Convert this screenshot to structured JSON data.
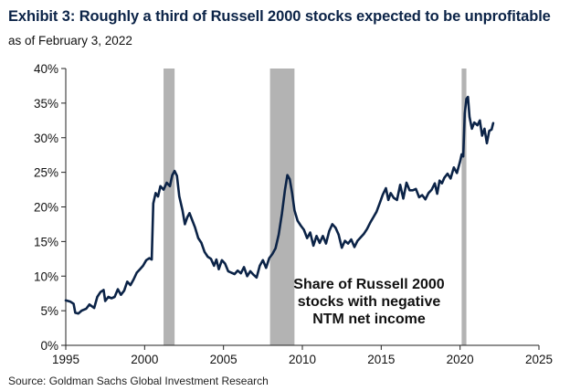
{
  "header": {
    "title": "Exhibit 3: Roughly a third of Russell 2000 stocks expected to be unprofitable",
    "subtitle": "as of February 3, 2022"
  },
  "footer": {
    "source": "Source: Goldman Sachs Global Investment Research"
  },
  "chart_data": {
    "type": "line",
    "xlim": [
      1995,
      2025
    ],
    "ylim": [
      0,
      40
    ],
    "x_ticks": [
      {
        "value": 1995,
        "label": "1995"
      },
      {
        "value": 2000,
        "label": "2000"
      },
      {
        "value": 2005,
        "label": "2005"
      },
      {
        "value": 2010,
        "label": "2010"
      },
      {
        "value": 2015,
        "label": "2015"
      },
      {
        "value": 2020,
        "label": "2020"
      },
      {
        "value": 2025,
        "label": "2025"
      }
    ],
    "y_ticks": [
      {
        "value": 0,
        "label": "0%"
      },
      {
        "value": 5,
        "label": "5%"
      },
      {
        "value": 10,
        "label": "10%"
      },
      {
        "value": 15,
        "label": "15%"
      },
      {
        "value": 20,
        "label": "20%"
      },
      {
        "value": 25,
        "label": "25%"
      },
      {
        "value": 30,
        "label": "30%"
      },
      {
        "value": 35,
        "label": "35%"
      },
      {
        "value": 40,
        "label": "40%"
      }
    ],
    "grid": false,
    "line_color": "#0b2347",
    "shade_color": "#b3b3b3",
    "recessions": [
      {
        "start": 2001.2,
        "end": 2001.9
      },
      {
        "start": 2007.95,
        "end": 2009.5
      },
      {
        "start": 2020.1,
        "end": 2020.4
      }
    ],
    "annotation": [
      "Share of Russell 2000",
      "stocks with negative",
      "NTM net income"
    ],
    "series": [
      {
        "points": [
          [
            1995.0,
            6.5
          ],
          [
            1995.3,
            6.3
          ],
          [
            1995.5,
            6.0
          ],
          [
            1995.6,
            4.7
          ],
          [
            1995.8,
            4.6
          ],
          [
            1996.0,
            5.0
          ],
          [
            1996.3,
            5.3
          ],
          [
            1996.5,
            5.9
          ],
          [
            1996.8,
            5.4
          ],
          [
            1997.0,
            7.0
          ],
          [
            1997.2,
            7.7
          ],
          [
            1997.4,
            8.0
          ],
          [
            1997.5,
            6.4
          ],
          [
            1997.7,
            7.0
          ],
          [
            1997.9,
            6.8
          ],
          [
            1998.1,
            7.0
          ],
          [
            1998.3,
            8.1
          ],
          [
            1998.5,
            7.3
          ],
          [
            1998.7,
            7.9
          ],
          [
            1998.9,
            9.2
          ],
          [
            1999.1,
            8.7
          ],
          [
            1999.3,
            9.5
          ],
          [
            1999.5,
            10.5
          ],
          [
            1999.7,
            11.0
          ],
          [
            1999.9,
            11.5
          ],
          [
            2000.1,
            12.3
          ],
          [
            2000.3,
            12.6
          ],
          [
            2000.45,
            12.4
          ],
          [
            2000.55,
            20.5
          ],
          [
            2000.7,
            22.0
          ],
          [
            2000.85,
            21.5
          ],
          [
            2001.0,
            23.0
          ],
          [
            2001.2,
            22.5
          ],
          [
            2001.4,
            23.5
          ],
          [
            2001.6,
            23.0
          ],
          [
            2001.75,
            24.6
          ],
          [
            2001.9,
            25.2
          ],
          [
            2002.05,
            24.5
          ],
          [
            2002.2,
            21.5
          ],
          [
            2002.4,
            19.5
          ],
          [
            2002.55,
            17.5
          ],
          [
            2002.7,
            18.5
          ],
          [
            2002.85,
            19.1
          ],
          [
            2003.0,
            18.2
          ],
          [
            2003.2,
            17.0
          ],
          [
            2003.4,
            15.5
          ],
          [
            2003.6,
            14.8
          ],
          [
            2003.8,
            13.5
          ],
          [
            2004.0,
            12.8
          ],
          [
            2004.2,
            12.5
          ],
          [
            2004.4,
            11.5
          ],
          [
            2004.55,
            12.4
          ],
          [
            2004.7,
            11.0
          ],
          [
            2004.9,
            12.3
          ],
          [
            2005.1,
            11.8
          ],
          [
            2005.3,
            10.7
          ],
          [
            2005.5,
            10.5
          ],
          [
            2005.7,
            10.3
          ],
          [
            2005.9,
            10.8
          ],
          [
            2006.1,
            10.4
          ],
          [
            2006.3,
            11.3
          ],
          [
            2006.5,
            10.0
          ],
          [
            2006.7,
            10.7
          ],
          [
            2006.9,
            10.2
          ],
          [
            2007.1,
            9.8
          ],
          [
            2007.3,
            11.5
          ],
          [
            2007.5,
            12.3
          ],
          [
            2007.7,
            11.2
          ],
          [
            2007.9,
            12.6
          ],
          [
            2008.1,
            13.2
          ],
          [
            2008.3,
            14.0
          ],
          [
            2008.5,
            16.0
          ],
          [
            2008.7,
            19.0
          ],
          [
            2008.9,
            22.5
          ],
          [
            2009.05,
            24.6
          ],
          [
            2009.2,
            24.0
          ],
          [
            2009.35,
            22.0
          ],
          [
            2009.5,
            19.5
          ],
          [
            2009.7,
            18.0
          ],
          [
            2009.9,
            17.3
          ],
          [
            2010.1,
            16.7
          ],
          [
            2010.3,
            15.5
          ],
          [
            2010.5,
            16.3
          ],
          [
            2010.7,
            14.4
          ],
          [
            2010.9,
            15.8
          ],
          [
            2011.1,
            14.8
          ],
          [
            2011.3,
            15.8
          ],
          [
            2011.5,
            14.7
          ],
          [
            2011.7,
            16.5
          ],
          [
            2011.9,
            17.5
          ],
          [
            2012.1,
            17.0
          ],
          [
            2012.3,
            16.0
          ],
          [
            2012.5,
            14.1
          ],
          [
            2012.7,
            15.1
          ],
          [
            2012.9,
            14.7
          ],
          [
            2013.1,
            15.3
          ],
          [
            2013.3,
            14.2
          ],
          [
            2013.5,
            15.1
          ],
          [
            2013.7,
            15.6
          ],
          [
            2013.9,
            16.1
          ],
          [
            2014.1,
            16.8
          ],
          [
            2014.3,
            17.7
          ],
          [
            2014.5,
            18.5
          ],
          [
            2014.7,
            19.3
          ],
          [
            2014.9,
            20.5
          ],
          [
            2015.1,
            21.8
          ],
          [
            2015.3,
            22.7
          ],
          [
            2015.45,
            21.0
          ],
          [
            2015.6,
            22.0
          ],
          [
            2015.8,
            21.3
          ],
          [
            2016.0,
            21.0
          ],
          [
            2016.2,
            23.2
          ],
          [
            2016.4,
            21.2
          ],
          [
            2016.6,
            23.5
          ],
          [
            2016.8,
            22.4
          ],
          [
            2017.0,
            22.4
          ],
          [
            2017.2,
            22.6
          ],
          [
            2017.4,
            21.4
          ],
          [
            2017.6,
            21.7
          ],
          [
            2017.8,
            21.1
          ],
          [
            2018.0,
            22.0
          ],
          [
            2018.2,
            22.5
          ],
          [
            2018.4,
            23.4
          ],
          [
            2018.55,
            21.9
          ],
          [
            2018.7,
            23.8
          ],
          [
            2018.85,
            23.4
          ],
          [
            2019.0,
            24.2
          ],
          [
            2019.2,
            24.8
          ],
          [
            2019.4,
            24.1
          ],
          [
            2019.6,
            25.7
          ],
          [
            2019.8,
            24.9
          ],
          [
            2020.0,
            26.6
          ],
          [
            2020.1,
            27.6
          ],
          [
            2020.2,
            27.3
          ],
          [
            2020.3,
            33.5
          ],
          [
            2020.4,
            35.6
          ],
          [
            2020.5,
            35.9
          ],
          [
            2020.6,
            33.0
          ],
          [
            2020.75,
            31.3
          ],
          [
            2020.9,
            32.2
          ],
          [
            2021.1,
            31.8
          ],
          [
            2021.25,
            32.5
          ],
          [
            2021.4,
            30.3
          ],
          [
            2021.55,
            31.3
          ],
          [
            2021.7,
            29.2
          ],
          [
            2021.85,
            31.0
          ],
          [
            2022.0,
            31.2
          ],
          [
            2022.1,
            32.1
          ]
        ]
      }
    ]
  }
}
